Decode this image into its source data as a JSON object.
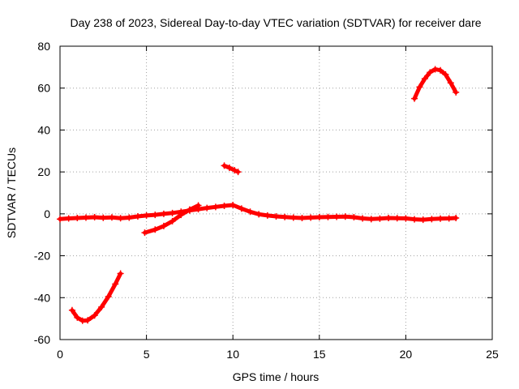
{
  "chart_data": {
    "type": "scatter",
    "title": "Day 238 of 2023, Sidereal Day-to-day VTEC variation (SDTVAR) for receiver dare",
    "xlabel": "GPS time / hours",
    "ylabel": "SDTVAR / TECUs",
    "xlim": [
      0,
      25
    ],
    "ylim": [
      -60,
      80
    ],
    "x_ticks": [
      0,
      5,
      10,
      15,
      20,
      25
    ],
    "y_ticks": [
      -60,
      -40,
      -20,
      0,
      20,
      40,
      60,
      80
    ],
    "grid": true,
    "marker": "plus",
    "series_color": "#ff0000",
    "series": [
      {
        "name": "main-band",
        "points": [
          [
            0.0,
            -2.5
          ],
          [
            0.5,
            -2.2
          ],
          [
            1.0,
            -2.0
          ],
          [
            1.5,
            -1.8
          ],
          [
            2.0,
            -1.6
          ],
          [
            2.5,
            -1.9
          ],
          [
            3.0,
            -1.7
          ],
          [
            3.5,
            -2.1
          ],
          [
            4.0,
            -1.8
          ],
          [
            4.5,
            -1.2
          ],
          [
            5.0,
            -0.8
          ],
          [
            5.5,
            -0.5
          ],
          [
            6.0,
            0.0
          ],
          [
            6.5,
            0.4
          ],
          [
            7.0,
            1.0
          ],
          [
            7.5,
            1.6
          ],
          [
            8.0,
            2.2
          ],
          [
            8.5,
            2.8
          ],
          [
            9.0,
            3.3
          ],
          [
            9.5,
            3.8
          ],
          [
            10.0,
            4.2
          ],
          [
            10.5,
            2.5
          ],
          [
            11.0,
            1.0
          ],
          [
            11.5,
            -0.2
          ],
          [
            12.0,
            -0.8
          ],
          [
            12.5,
            -1.2
          ],
          [
            13.0,
            -1.5
          ],
          [
            13.5,
            -1.8
          ],
          [
            14.0,
            -2.0
          ],
          [
            14.5,
            -1.8
          ],
          [
            15.0,
            -1.6
          ],
          [
            15.5,
            -1.5
          ],
          [
            16.0,
            -1.4
          ],
          [
            16.5,
            -1.3
          ],
          [
            17.0,
            -1.6
          ],
          [
            17.5,
            -2.2
          ],
          [
            18.0,
            -2.5
          ],
          [
            18.5,
            -2.3
          ],
          [
            19.0,
            -2.0
          ],
          [
            19.5,
            -2.1
          ],
          [
            20.0,
            -2.2
          ],
          [
            20.5,
            -2.6
          ],
          [
            21.0,
            -2.8
          ],
          [
            21.5,
            -2.5
          ],
          [
            22.0,
            -2.3
          ],
          [
            22.5,
            -2.2
          ],
          [
            22.9,
            -2.0
          ]
        ]
      },
      {
        "name": "early-arc",
        "points": [
          [
            0.7,
            -46.0
          ],
          [
            1.0,
            -49.5
          ],
          [
            1.3,
            -51.0
          ],
          [
            1.6,
            -50.8
          ],
          [
            2.0,
            -48.5
          ],
          [
            2.4,
            -44.5
          ],
          [
            2.8,
            -39.5
          ],
          [
            3.2,
            -33.5
          ],
          [
            3.5,
            -28.5
          ]
        ]
      },
      {
        "name": "rising-segment",
        "points": [
          [
            4.9,
            -9.0
          ],
          [
            5.5,
            -7.5
          ],
          [
            6.0,
            -5.8
          ],
          [
            6.5,
            -3.5
          ],
          [
            7.0,
            -0.5
          ],
          [
            7.5,
            2.0
          ],
          [
            8.0,
            4.0
          ]
        ]
      },
      {
        "name": "short-segment",
        "points": [
          [
            9.5,
            23.0
          ],
          [
            9.8,
            22.0
          ],
          [
            10.1,
            20.8
          ],
          [
            10.3,
            20.0
          ]
        ]
      },
      {
        "name": "late-arc",
        "points": [
          [
            20.5,
            55.0
          ],
          [
            20.8,
            60.5
          ],
          [
            21.1,
            64.5
          ],
          [
            21.4,
            67.5
          ],
          [
            21.7,
            69.0
          ],
          [
            22.0,
            68.5
          ],
          [
            22.3,
            66.5
          ],
          [
            22.6,
            62.5
          ],
          [
            22.9,
            58.0
          ]
        ]
      }
    ]
  }
}
